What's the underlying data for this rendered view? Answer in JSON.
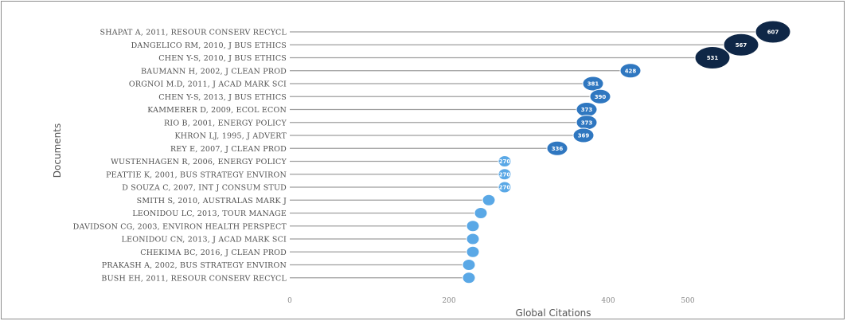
{
  "chart_data": {
    "type": "scatter",
    "title": "",
    "xlabel": "Global Citations",
    "ylabel": "Documents",
    "xlim": [
      0,
      620
    ],
    "xticks": [
      0,
      200,
      400,
      500
    ],
    "xtick_labels": [
      "0",
      "200",
      "400",
      "500"
    ],
    "grid": false,
    "legend": "none",
    "categories": [
      "SHAPAT A, 2011, RESOUR CONSERV RECYCL",
      "DANGELICO RM, 2010, J BUS ETHICS",
      "CHEN Y-S, 2010, J BUS ETHICS",
      "BAUMANN H, 2002, J CLEAN PROD",
      "ORGNOI M.D, 2011, J ACAD MARK SCI",
      "CHEN Y-S, 2013, J BUS ETHICS",
      "KAMMERER D, 2009, ECOL ECON",
      "RIO B, 2001, ENERGY POLICY",
      "KHRON LJ, 1995, J ADVERT",
      "REY E, 2007, J CLEAN PROD",
      "WUSTENHAGEN R, 2006, ENERGY POLICY",
      "PEATTIE K, 2001, BUS STRATEGY ENVIRON",
      "D SOUZA C, 2007, INT J CONSUM STUD",
      "SMITH S, 2010, AUSTRALAS MARK J",
      "LEONIDOU LC, 2013, TOUR MANAGE",
      "DAVIDSON CG, 2003, ENVIRON HEALTH PERSPECT",
      "LEONIDOU CN, 2013, J ACAD MARK SCI",
      "CHEKIMA BC, 2016, J CLEAN PROD",
      "PRAKASH A, 2002, BUS STRATEGY ENVIRON",
      "BUSH EH, 2011, RESOUR CONSERV RECYCL"
    ],
    "values": [
      607,
      567,
      531,
      428,
      381,
      390,
      373,
      373,
      369,
      336,
      270,
      270,
      270,
      250,
      240,
      230,
      230,
      230,
      225,
      225
    ],
    "value_labels": [
      "607",
      "567",
      "531",
      "428",
      "381",
      "390",
      "373",
      "373",
      "369",
      "336",
      "270",
      "270",
      "270",
      "",
      "",
      "",
      "",
      "",
      "",
      ""
    ],
    "colors": {
      "high": "#0f2747",
      "mid": "#2f77c0",
      "low": "#5aa8e6",
      "stem": "#9e9e9e"
    }
  }
}
